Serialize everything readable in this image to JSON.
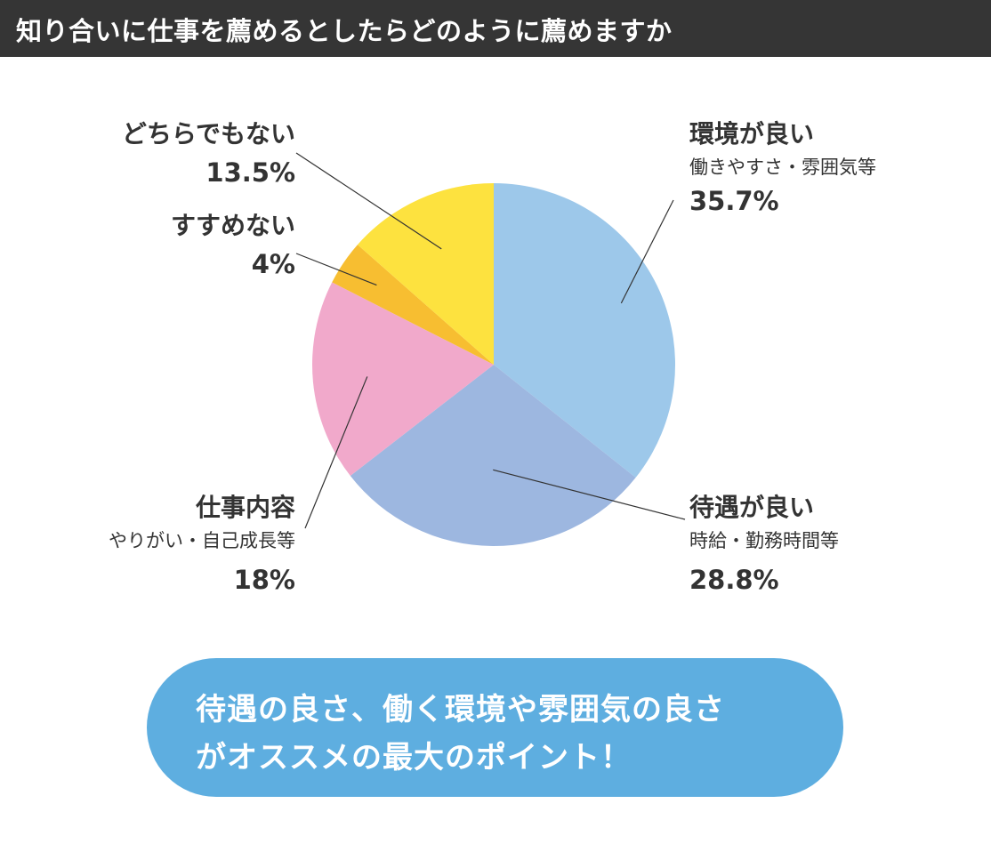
{
  "title": "知り合いに仕事を薦めるとしたらどのように薦めますか",
  "chart_data": {
    "type": "pie",
    "start_angle_deg": 0,
    "direction": "clockwise",
    "slices": [
      {
        "label": "環境が良い",
        "sublabel": "働きやすさ・雰囲気等",
        "value": 35.7,
        "display": "35.7%",
        "color": "#9dc8ea"
      },
      {
        "label": "待遇が良い",
        "sublabel": "時給・勤務時間等",
        "value": 28.8,
        "display": "28.8%",
        "color": "#9db7e0"
      },
      {
        "label": "仕事内容",
        "sublabel": "やりがい・自己成長等",
        "value": 18,
        "display": "18%",
        "color": "#f1a9cb"
      },
      {
        "label": "すすめない",
        "sublabel": "",
        "value": 4,
        "display": "4%",
        "color": "#f7be31"
      },
      {
        "label": "どちらでもない",
        "sublabel": "",
        "value": 13.5,
        "display": "13.5%",
        "color": "#fde23f"
      }
    ]
  },
  "callout": {
    "line1": "待遇の良さ、働く環境や雰囲気の良さ",
    "line2": "がオススメの最大のポイント！"
  },
  "colors": {
    "title_bar": "#353535",
    "callout_bg": "#5eaee0",
    "leader_line": "#333333"
  }
}
